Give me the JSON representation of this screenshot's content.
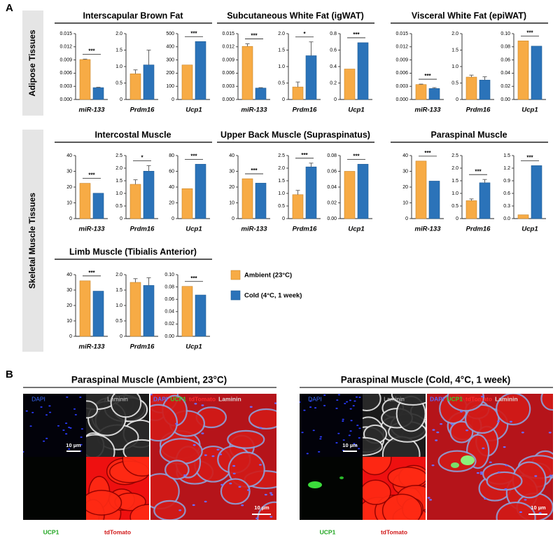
{
  "panel_a": {
    "label": "A",
    "row_labels": [
      "Adipose Tissues",
      "Skeletal Muscle Tissues"
    ],
    "groups": [
      "Interscapular Brown Fat",
      "Subcutaneous White Fat (igWAT)",
      "Visceral White Fat (epiWAT)",
      "Intercostal Muscle",
      "Upper Back Muscle (Supraspinatus)",
      "Paraspinal Muscle",
      "Limb Muscle (Tibialis Anterior)"
    ],
    "legend": [
      {
        "name": "Ambient (23°C)",
        "color": "#f7ab45"
      },
      {
        "name": "Cold (4°C, 1 week)",
        "color": "#2b73b9"
      }
    ]
  },
  "chart_data": [
    {
      "type": "bar",
      "xlabel": "miR-133",
      "values": [
        0.0091,
        0.0027
      ],
      "errors": [
        0.0001,
        0.0001
      ],
      "significance": "***",
      "ylim": [
        0,
        0.015
      ],
      "yticks": [
        {
          "value": 0,
          "label": "0.000"
        },
        0.003,
        0.006,
        0.009,
        0.012,
        0.015
      ]
    },
    {
      "type": "bar",
      "xlabel": "Prdm16",
      "values": [
        0.78,
        1.05
      ],
      "errors": [
        0.12,
        0.45
      ],
      "ylim": [
        0,
        2
      ],
      "yticks": [
        0,
        0.5,
        {
          "value": 1,
          "label": "1.0"
        },
        1.5,
        {
          "value": 2,
          "label": "2.0"
        }
      ]
    },
    {
      "type": "bar",
      "xlabel": "Ucp1",
      "values": [
        262,
        440
      ],
      "significance": "***",
      "ylim": [
        0,
        500
      ],
      "yticks": [
        0,
        100,
        200,
        300,
        400,
        500
      ]
    },
    {
      "type": "bar",
      "xlabel": "miR-133",
      "values": [
        0.0121,
        0.0026
      ],
      "errors": [
        0.0006,
        0.0001
      ],
      "significance": "***",
      "ylim": [
        0,
        0.015
      ],
      "yticks": [
        {
          "value": 0,
          "label": "0.000"
        },
        0.003,
        0.006,
        0.009,
        0.012,
        0.015
      ]
    },
    {
      "type": "bar",
      "xlabel": "Prdm16",
      "values": [
        0.38,
        1.33
      ],
      "errors": [
        0.15,
        0.42
      ],
      "significance": "*",
      "ylim": [
        0,
        2
      ],
      "yticks": [
        0,
        0.5,
        {
          "value": 1,
          "label": "1.0"
        },
        1.5,
        {
          "value": 2,
          "label": "2.0"
        }
      ]
    },
    {
      "type": "bar",
      "xlabel": "Ucp1",
      "values": [
        0.37,
        0.69
      ],
      "significance": "***",
      "ylim": [
        0,
        0.8
      ],
      "yticks": [
        0,
        0.2,
        0.4,
        0.6,
        0.8
      ]
    },
    {
      "type": "bar",
      "xlabel": "miR-133",
      "values": [
        0.0034,
        0.0025
      ],
      "errors": [
        0.0001,
        0.0002
      ],
      "significance": "***",
      "ylim": [
        0,
        0.015
      ],
      "yticks": [
        {
          "value": 0,
          "label": "0.000"
        },
        0.003,
        0.006,
        0.009,
        0.012,
        0.015
      ]
    },
    {
      "type": "bar",
      "xlabel": "Prdm16",
      "values": [
        0.68,
        0.59
      ],
      "errors": [
        0.06,
        0.1
      ],
      "ylim": [
        0,
        2
      ],
      "yticks": [
        0,
        0.5,
        {
          "value": 1,
          "label": "1.0"
        },
        1.5,
        {
          "value": 2,
          "label": "2.0"
        }
      ]
    },
    {
      "type": "bar",
      "xlabel": "Ucp1",
      "values": [
        0.089,
        0.081
      ],
      "significance": "***",
      "ylim": [
        0,
        0.1
      ],
      "yticks": [
        {
          "value": 0,
          "label": "0.00"
        },
        0.02,
        0.04,
        0.06,
        0.08,
        {
          "value": 0.1,
          "label": "0.10"
        }
      ]
    },
    {
      "type": "bar",
      "xlabel": "miR-133",
      "values": [
        22.4,
        16.1
      ],
      "significance": "***",
      "ylim": [
        0,
        40
      ],
      "yticks": [
        0,
        10,
        20,
        30,
        40
      ]
    },
    {
      "type": "bar",
      "xlabel": "Prdm16",
      "values": [
        1.36,
        1.88
      ],
      "errors": [
        0.18,
        0.22
      ],
      "significance": "*",
      "ylim": [
        0,
        2.5
      ],
      "yticks": [
        0,
        0.5,
        {
          "value": 1,
          "label": "1.0"
        },
        1.5,
        {
          "value": 2,
          "label": "2.0"
        },
        2.5
      ]
    },
    {
      "type": "bar",
      "xlabel": "Ucp1",
      "values": [
        38,
        69
      ],
      "significance": "***",
      "ylim": [
        0,
        80
      ],
      "yticks": [
        0,
        20,
        40,
        60,
        80
      ]
    },
    {
      "type": "bar",
      "xlabel": "miR-133",
      "values": [
        25.3,
        22.5
      ],
      "significance": "***",
      "ylim": [
        0,
        40
      ],
      "yticks": [
        0,
        10,
        20,
        30,
        40
      ]
    },
    {
      "type": "bar",
      "xlabel": "Prdm16",
      "values": [
        0.95,
        2.05
      ],
      "errors": [
        0.17,
        0.15
      ],
      "significance": "***",
      "ylim": [
        0,
        2.5
      ],
      "yticks": [
        0,
        0.5,
        {
          "value": 1,
          "label": "1.0"
        },
        1.5,
        {
          "value": 2,
          "label": "2.0"
        },
        2.5
      ]
    },
    {
      "type": "bar",
      "xlabel": "Ucp1",
      "values": [
        0.06,
        0.069
      ],
      "significance": "***",
      "ylim": [
        0,
        0.08
      ],
      "yticks": [
        {
          "value": 0,
          "label": "0.00"
        },
        0.02,
        0.04,
        0.06,
        0.08
      ]
    },
    {
      "type": "bar",
      "xlabel": "miR-133",
      "values": [
        36.5,
        23.8
      ],
      "significance": "***",
      "ylim": [
        0,
        40
      ],
      "yticks": [
        0,
        10,
        20,
        30,
        40
      ]
    },
    {
      "type": "bar",
      "xlabel": "Prdm16",
      "values": [
        0.71,
        1.42
      ],
      "errors": [
        0.07,
        0.13
      ],
      "significance": "***",
      "ylim": [
        0,
        2.5
      ],
      "yticks": [
        0,
        0.5,
        {
          "value": 1,
          "label": "1.0"
        },
        1.5,
        {
          "value": 2,
          "label": "2.0"
        },
        2.5
      ]
    },
    {
      "type": "bar",
      "xlabel": "Ucp1",
      "values": [
        0.09,
        1.26
      ],
      "significance": "***",
      "ylim": [
        0,
        1.5
      ],
      "yticks": [
        {
          "value": 0,
          "label": "0.0"
        },
        0.3,
        0.6,
        0.9,
        1.2,
        1.5
      ]
    },
    {
      "type": "bar",
      "xlabel": "miR-133",
      "values": [
        36,
        29.3
      ],
      "significance": "***",
      "ylim": [
        0,
        40
      ],
      "yticks": [
        0,
        10,
        20,
        30,
        40
      ]
    },
    {
      "type": "bar",
      "xlabel": "Prdm16",
      "values": [
        1.75,
        1.65
      ],
      "errors": [
        0.12,
        0.25
      ],
      "ylim": [
        0,
        2
      ],
      "yticks": [
        0,
        0.5,
        {
          "value": 1,
          "label": "1.0"
        },
        1.5,
        {
          "value": 2,
          "label": "2.0"
        }
      ]
    },
    {
      "type": "bar",
      "xlabel": "Ucp1",
      "values": [
        0.081,
        0.067
      ],
      "significance": "***",
      "ylim": [
        0,
        0.1
      ],
      "yticks": [
        {
          "value": 0,
          "label": "0.00"
        },
        0.02,
        0.04,
        0.06,
        0.08,
        {
          "value": 0.1,
          "label": "0.10"
        }
      ]
    }
  ],
  "panel_b": {
    "label": "B",
    "images": [
      {
        "title": "Paraspinal Muscle (Ambient, 23°C)",
        "channels": [
          "DAPI",
          "Laminin",
          "UCP1",
          "tdTomato"
        ],
        "merged_label": [
          "DAPI",
          "UCP1",
          "tdTomato",
          "Laminin"
        ],
        "scale_bars": [
          "10 µm",
          "10 µm"
        ]
      },
      {
        "title": "Paraspinal Muscle (Cold, 4°C, 1 week)",
        "channels": [
          "DAPI",
          "Laminin",
          "UCP1",
          "tdTomato"
        ],
        "merged_label": [
          "DAPI",
          "UCP1",
          "tdTomato",
          "Laminin"
        ],
        "scale_bars": [
          "10 µm",
          "10 µm"
        ]
      }
    ]
  }
}
